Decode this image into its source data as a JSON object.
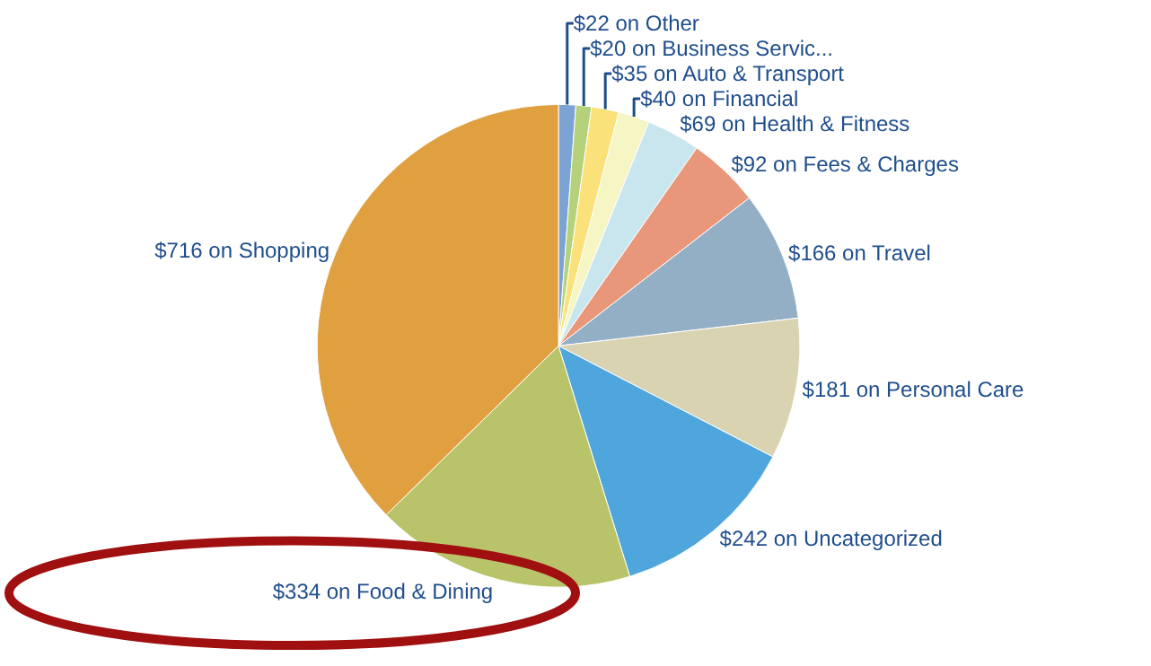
{
  "chart_data": {
    "type": "pie",
    "categories": [
      "$22 on Other",
      "$20 on Business Servic...",
      "$35 on Auto & Transport",
      "$40 on Financial",
      "$69 on Health & Fitness",
      "$92 on Fees & Charges",
      "$166 on Travel",
      "$181 on Personal Care",
      "$242 on Uncategorized",
      "$334 on Food & Dining",
      "$716 on Shopping"
    ],
    "values": [
      22,
      20,
      35,
      40,
      69,
      92,
      166,
      181,
      242,
      334,
      716
    ],
    "colors": [
      "#7ba3d4",
      "#b5d27a",
      "#fbe17a",
      "#f6f5c4",
      "#c9e6ef",
      "#e8977a",
      "#93afc6",
      "#d9d3b2",
      "#4fa6dc",
      "#b9c46a",
      "#e0a040"
    ],
    "legend": false
  }
}
